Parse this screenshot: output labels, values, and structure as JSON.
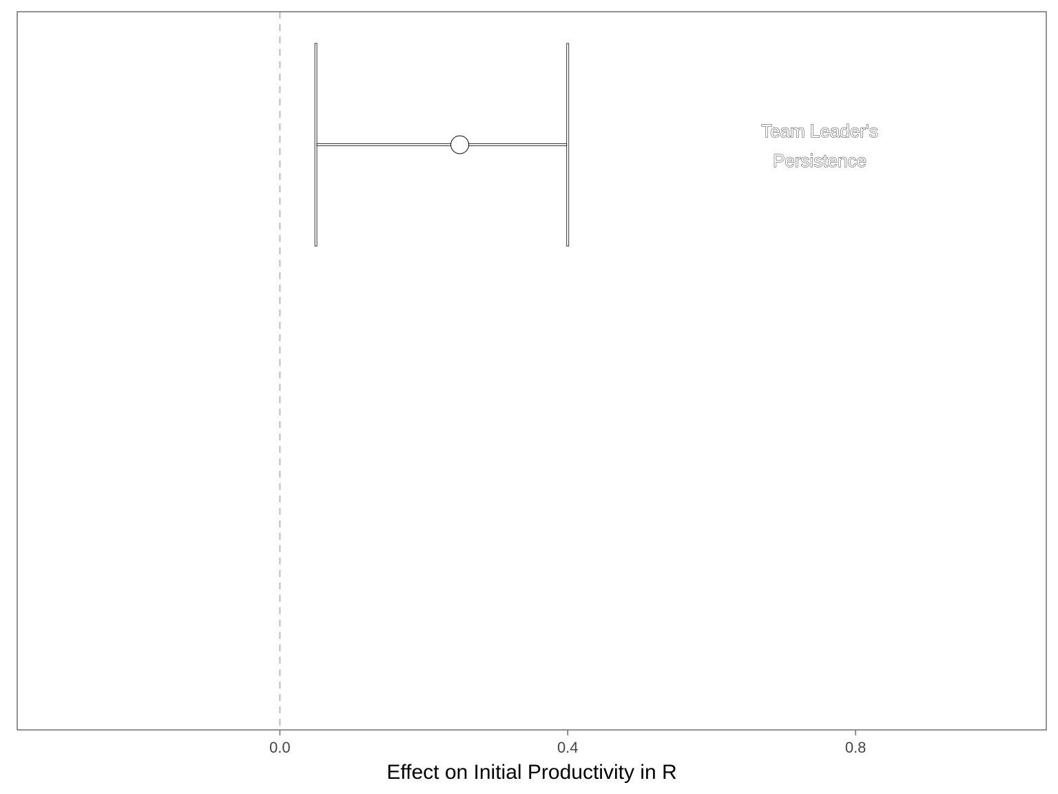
{
  "chart_data": {
    "type": "errorbar",
    "xlabel": "Effect on Initial Productivity in R",
    "ylabel": "",
    "title": "",
    "xlim": [
      -0.365,
      1.065
    ],
    "x_ticks": [
      0.0,
      0.4,
      0.8
    ],
    "x_tick_labels": [
      "0.0",
      "0.4",
      "0.8"
    ],
    "reference_line": {
      "x": 0.0,
      "style": "dashed",
      "color": "#c8c8c8"
    },
    "grid": false,
    "points": [
      {
        "estimate": 0.25,
        "ci_low": 0.05,
        "ci_high": 0.4
      }
    ],
    "annotation": {
      "lines": [
        "Team Leader's",
        "Persistence"
      ]
    }
  }
}
